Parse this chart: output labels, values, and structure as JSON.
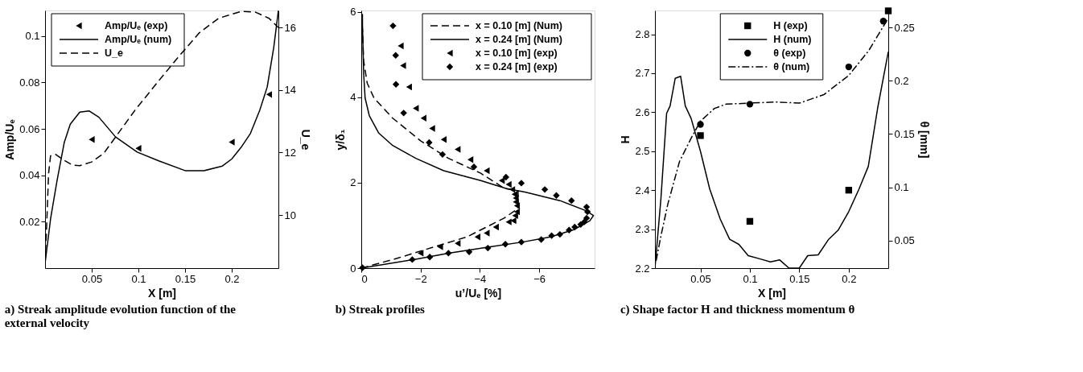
{
  "chart_data": [
    {
      "type": "line",
      "xlabel": "X [m]",
      "ylabel": "Amp/Uₑ",
      "y2label": "U_e",
      "annotations": [
        "a) Streak amplitude evolution function of the external velocity"
      ],
      "xlim": [
        0,
        0.25
      ],
      "xticks": [
        0.05,
        0.1,
        0.15,
        0.2
      ],
      "ylim": [
        0,
        0.111
      ],
      "yticks": [
        0.02,
        0.04,
        0.06,
        0.08,
        0.1
      ],
      "y2lim": [
        8.3,
        16.55
      ],
      "y2ticks": [
        10,
        12,
        14,
        16
      ],
      "legend": "top left",
      "grid": false,
      "series": [
        {
          "name": "Amp/Uₑ (exp)",
          "type": "scatter",
          "marker": "triangle",
          "color": "#000000",
          "x": [
            0.05,
            0.1,
            0.2,
            0.24
          ],
          "values": [
            0.0554,
            0.0516,
            0.0543,
            0.0748
          ]
        },
        {
          "name": "Amp/Uₑ (num)",
          "type": "line",
          "line_style": "solid",
          "color": "#000000",
          "x": [
            0.0,
            0.006,
            0.0128,
            0.0205,
            0.027,
            0.0372,
            0.0474,
            0.0577,
            0.0756,
            0.0987,
            0.1218,
            0.15,
            0.1705,
            0.19,
            0.2,
            0.21,
            0.22,
            0.23,
            0.238,
            0.245,
            0.25
          ],
          "values": [
            0.002,
            0.0215,
            0.0376,
            0.054,
            0.062,
            0.0672,
            0.0677,
            0.065,
            0.0565,
            0.05,
            0.0462,
            0.042,
            0.042,
            0.044,
            0.047,
            0.052,
            0.058,
            0.068,
            0.078,
            0.095,
            0.111
          ]
        },
        {
          "name": "U_e",
          "type": "line",
          "line_style": "dashed",
          "axis": "y2",
          "color": "#000000",
          "x": [
            0.0,
            0.0018,
            0.0038,
            0.0059,
            0.0115,
            0.019,
            0.0295,
            0.037,
            0.05,
            0.063,
            0.0756,
            0.0962,
            0.1218,
            0.1423,
            0.1654,
            0.186,
            0.21,
            0.225,
            0.24,
            0.25
          ],
          "values": [
            8.45,
            9.73,
            11.34,
            11.9,
            11.94,
            11.78,
            11.6,
            11.58,
            11.7,
            11.98,
            12.5,
            13.35,
            14.3,
            15.04,
            15.84,
            16.3,
            16.52,
            16.5,
            16.3,
            16.0
          ]
        }
      ]
    },
    {
      "type": "line",
      "xlabel": "u’/Uₑ [%]",
      "ylabel": "y/δ₁",
      "annotations": [
        "b) Streak profiles"
      ],
      "xlim": [
        0,
        -7.87
      ],
      "xticks": [
        0,
        -2,
        -4,
        -6
      ],
      "ylim": [
        0,
        6.03
      ],
      "yticks": [
        0,
        2,
        4,
        6
      ],
      "legend": "top right",
      "grid": false,
      "series": [
        {
          "name": "x = 0.10 [m] (Num)",
          "type": "line",
          "line_style": "dashed",
          "color": "#000000",
          "x": [
            0,
            -1.21,
            -2.47,
            -3.56,
            -4.82,
            -5.29,
            -5.29,
            -4.82,
            -4.03,
            -2.94,
            -2.0,
            -1.06,
            -0.43,
            -0.2,
            -0.08,
            -0.04
          ],
          "values": [
            0,
            0.23,
            0.5,
            0.73,
            1.17,
            1.4,
            1.81,
            1.87,
            2.22,
            2.57,
            2.98,
            3.51,
            3.98,
            4.33,
            4.85,
            5.61
          ]
        },
        {
          "name": "x = 0.24 [m] (Num)",
          "type": "line",
          "line_style": "solid",
          "color": "#000000",
          "x": [
            0,
            -1.76,
            -2.94,
            -4.35,
            -5.44,
            -6.38,
            -7.17,
            -7.71,
            -7.83,
            -7.56,
            -6.7,
            -5.52,
            -4.9,
            -4.03,
            -2.78,
            -1.84,
            -1.06,
            -0.59,
            -0.27,
            -0.13,
            -0.08,
            -0.04,
            -0.04
          ],
          "values": [
            0,
            0.2,
            0.35,
            0.5,
            0.61,
            0.73,
            0.9,
            1.11,
            1.23,
            1.35,
            1.58,
            1.78,
            1.86,
            2.05,
            2.28,
            2.57,
            2.87,
            3.16,
            3.57,
            3.98,
            4.56,
            5.73,
            5.95
          ]
        },
        {
          "name": "x = 0.10 [m] (exp)",
          "type": "scatter",
          "marker": "triangle",
          "color": "#000000",
          "x": [
            -1.33,
            -1.41,
            -1.61,
            -1.84,
            -2.1,
            -2.39,
            -2.78,
            -3.25,
            -3.68,
            -4.23,
            -4.74,
            -4.97,
            -5.09,
            -5.17,
            -5.21,
            -5.21,
            -5.25,
            -5.25,
            -5.19,
            -5.13,
            -4.97,
            -4.54,
            -4.23,
            -3.92,
            -3.25,
            -2.66,
            -2.0
          ],
          "values": [
            5.2,
            4.74,
            4.24,
            3.74,
            3.51,
            3.27,
            3.01,
            2.78,
            2.54,
            2.28,
            2.05,
            1.96,
            1.84,
            1.73,
            1.64,
            1.55,
            1.46,
            1.32,
            1.23,
            1.11,
            1.08,
            0.96,
            0.82,
            0.73,
            0.58,
            0.5,
            0.35
          ]
        },
        {
          "name": "x = 0.24 [m] (exp)",
          "type": "scatter",
          "marker": "diamond",
          "color": "#000000",
          "x": [
            -1.07,
            -1.16,
            -1.17,
            -1.43,
            -2.29,
            -2.74,
            -3.8,
            -4.88,
            -5.4,
            -6.19,
            -6.58,
            -7.09,
            -7.6,
            -7.63,
            -7.6,
            -7.52,
            -7.4,
            -7.2,
            -7.01,
            -6.7,
            -6.42,
            -6.07,
            -5.4,
            -4.86,
            -4.27,
            -3.64,
            -2.94,
            -2.31,
            -1.72,
            -0.04
          ],
          "values": [
            5.67,
            4.98,
            4.3,
            3.63,
            2.94,
            2.66,
            2.37,
            2.13,
            1.99,
            1.84,
            1.7,
            1.58,
            1.43,
            1.32,
            1.17,
            1.08,
            1.02,
            0.96,
            0.89,
            0.79,
            0.76,
            0.67,
            0.61,
            0.56,
            0.47,
            0.38,
            0.35,
            0.26,
            0.2,
            0.01
          ]
        }
      ]
    },
    {
      "type": "line",
      "xlabel": "X [m]",
      "ylabel": "H",
      "y2label": "θ [mm]",
      "annotations": [
        "c) Shape factor H and thickness momentum θ"
      ],
      "xlim": [
        0.004,
        0.24
      ],
      "xticks": [
        0.05,
        0.1,
        0.15,
        0.2
      ],
      "ylim": [
        2.2,
        2.861
      ],
      "yticks": [
        2.2,
        2.3,
        2.4,
        2.5,
        2.6,
        2.7,
        2.8
      ],
      "y2lim": [
        0.024,
        0.266
      ],
      "y2ticks": [
        0.05,
        0.1,
        0.15,
        0.2,
        0.25
      ],
      "legend": "top",
      "grid": false,
      "series": [
        {
          "name": "H (exp)",
          "type": "scatter",
          "marker": "square",
          "color": "#000000",
          "x": [
            0.05,
            0.1,
            0.2,
            0.24
          ],
          "values": [
            2.54,
            2.32,
            2.4,
            2.86
          ]
        },
        {
          "name": "H (num)",
          "type": "line",
          "line_style": "solid",
          "color": "#000000",
          "x": [
            0.004,
            0.01,
            0.0158,
            0.0193,
            0.0245,
            0.03,
            0.0347,
            0.0406,
            0.05,
            0.0594,
            0.07,
            0.0795,
            0.0889,
            0.0983,
            0.1113,
            0.1208,
            0.1302,
            0.1396,
            0.15,
            0.1585,
            0.1691,
            0.1797,
            0.1892,
            0.2,
            0.2104,
            0.2198,
            0.2292,
            0.24
          ],
          "values": [
            2.2,
            2.377,
            2.597,
            2.616,
            2.687,
            2.692,
            2.616,
            2.584,
            2.5,
            2.403,
            2.326,
            2.274,
            2.261,
            2.232,
            2.223,
            2.216,
            2.221,
            2.2,
            2.2,
            2.232,
            2.234,
            2.274,
            2.297,
            2.345,
            2.403,
            2.461,
            2.61,
            2.755
          ]
        },
        {
          "name": "θ (exp)",
          "type": "scatter",
          "marker": "circle",
          "axis": "y2",
          "color": "#000000",
          "x": [
            0.05,
            0.1,
            0.2,
            0.235
          ],
          "values": [
            0.159,
            0.178,
            0.213,
            0.256
          ]
        },
        {
          "name": "θ (num)",
          "type": "line",
          "line_style": "dashdot",
          "axis": "y2",
          "color": "#000000",
          "x": [
            0.0052,
            0.01,
            0.017,
            0.0288,
            0.0406,
            0.05,
            0.0642,
            0.0759,
            0.0995,
            0.1255,
            0.1502,
            0.175,
            0.2,
            0.22,
            0.2389
          ],
          "values": [
            0.031,
            0.054,
            0.084,
            0.124,
            0.146,
            0.162,
            0.174,
            0.178,
            0.179,
            0.18,
            0.179,
            0.187,
            0.205,
            0.228,
            0.257
          ]
        }
      ]
    }
  ]
}
